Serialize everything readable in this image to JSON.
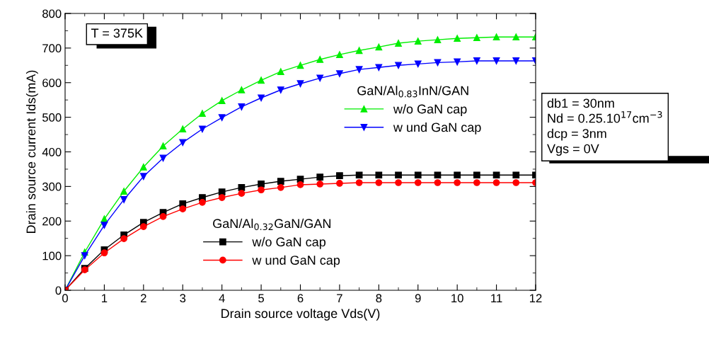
{
  "chart_data": {
    "type": "line",
    "xlabel": "Drain source voltage Vds(V)",
    "ylabel": "Drain source current Ids(mA)",
    "x": [
      0,
      0.5,
      1,
      1.5,
      2,
      2.5,
      3,
      3.5,
      4,
      4.5,
      5,
      5.5,
      6,
      6.5,
      7,
      7.5,
      8,
      8.5,
      9,
      9.5,
      10,
      10.5,
      11,
      11.5,
      12
    ],
    "series": [
      {
        "name": "w/o GaN cap",
        "color": "#00ee00",
        "marker": "triangle",
        "values": [
          0,
          110,
          206,
          286,
          356,
          417,
          466,
          511,
          548,
          579,
          607,
          632,
          650,
          667,
          681,
          693,
          703,
          714,
          720,
          724,
          728,
          730,
          732,
          732,
          732
        ]
      },
      {
        "name": "w und GaN cap",
        "color": "#0000ff",
        "marker": "triangle_down",
        "values": [
          0,
          100,
          188,
          262,
          329,
          382,
          427,
          466,
          499,
          530,
          556,
          579,
          597,
          613,
          626,
          638,
          644,
          650,
          654,
          658,
          660,
          663,
          663,
          663,
          663
        ]
      },
      {
        "name": "w/o GaN cap",
        "color": "#000000",
        "marker": "square",
        "values": [
          0,
          63,
          117,
          160,
          196,
          225,
          250,
          268,
          284,
          297,
          307,
          315,
          321,
          327,
          331,
          333,
          333,
          333,
          333,
          333,
          333,
          333,
          333,
          333,
          333
        ]
      },
      {
        "name": "w und GaN cap",
        "color": "#ff0000",
        "marker": "circle",
        "values": [
          0,
          59,
          108,
          149,
          184,
          213,
          235,
          254,
          268,
          280,
          290,
          297,
          305,
          307,
          309,
          311,
          311,
          311,
          311,
          311,
          311,
          311,
          311,
          311,
          311
        ]
      }
    ],
    "xlim": [
      0,
      12
    ],
    "xticks": [
      0,
      1,
      2,
      3,
      4,
      5,
      6,
      7,
      8,
      9,
      10,
      11,
      12
    ],
    "ylim": [
      0,
      800
    ],
    "yticks": [
      0,
      100,
      200,
      300,
      400,
      500,
      600,
      700,
      800
    ],
    "grid": false,
    "legend": "right",
    "line_style": "solid",
    "annotations": [
      "T = 375K",
      "GaN/Al$_{0.83}$InN/GAN",
      "GaN/Al$_{0.32}$GaN/GAN",
      "db1 = 30nm",
      "Nd = 0.25.10$^{17}$cm$^{−3}$",
      "dcp = 3nm",
      "Vgs = 0V"
    ]
  }
}
